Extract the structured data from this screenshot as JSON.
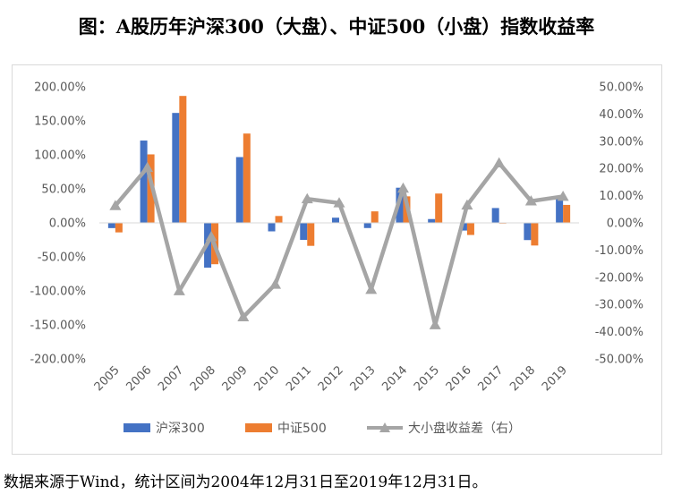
{
  "title": "图：A股历年沪深300（大盘）、中证500（小盘）指数收益率",
  "source_note": "数据来源于Wind，统计区间为2004年12月31日至2019年12月31日。",
  "colors": {
    "hs300": "#4472c4",
    "zz500": "#ed7d31",
    "spread": "#a5a5a5",
    "axis": "#d9d9d9",
    "text": "#595959"
  },
  "chart_data": {
    "type": "bar",
    "categories": [
      "2005",
      "2006",
      "2007",
      "2008",
      "2009",
      "2010",
      "2011",
      "2012",
      "2013",
      "2014",
      "2015",
      "2016",
      "2017",
      "2018",
      "2019"
    ],
    "series": [
      {
        "name": "沪深300",
        "type": "bar",
        "axis": "left",
        "values": [
          -7.7,
          121.0,
          161.6,
          -65.9,
          96.7,
          -12.5,
          -25.0,
          7.6,
          -7.6,
          51.7,
          5.6,
          -11.3,
          21.8,
          -25.3,
          36.1
        ]
      },
      {
        "name": "中证500",
        "type": "bar",
        "axis": "left",
        "values": [
          -14.0,
          100.7,
          186.6,
          -60.8,
          131.3,
          10.1,
          -33.8,
          0.3,
          16.9,
          39.0,
          43.1,
          -17.8,
          -0.2,
          -33.3,
          26.4
        ]
      },
      {
        "name": "大小盘收益差（右）",
        "type": "line",
        "axis": "right",
        "values": [
          6.3,
          20.3,
          -25.0,
          -5.1,
          -34.6,
          -22.6,
          8.8,
          7.3,
          -24.5,
          12.7,
          -37.5,
          6.5,
          22.0,
          8.0,
          9.7
        ]
      }
    ],
    "y_left": {
      "min": -200,
      "max": 200,
      "step": 50,
      "labels": [
        "200.00%",
        "150.00%",
        "100.00%",
        "50.00%",
        "0.00%",
        "-50.00%",
        "-100.00%",
        "-150.00%",
        "-200.00%"
      ]
    },
    "y_right": {
      "min": -50,
      "max": 50,
      "step": 10,
      "labels": [
        "50.00%",
        "40.00%",
        "30.00%",
        "20.00%",
        "10.00%",
        "0.00%",
        "-10.00%",
        "-20.00%",
        "-30.00%",
        "-40.00%",
        "-50.00%"
      ]
    },
    "grid": false,
    "legend_position": "bottom"
  }
}
